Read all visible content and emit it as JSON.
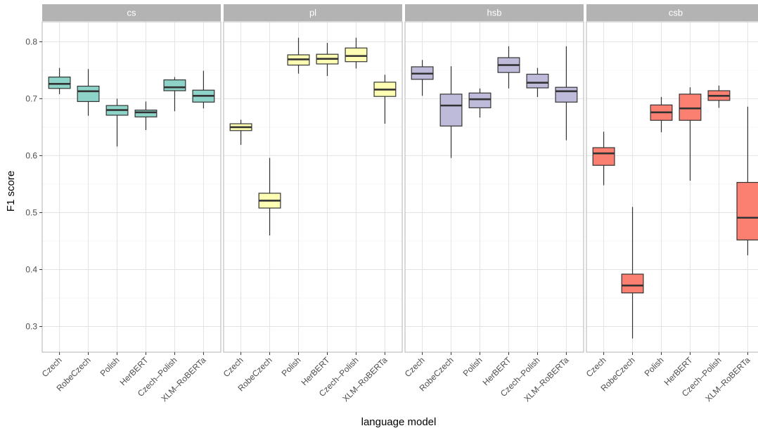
{
  "chart_data": {
    "type": "boxplot",
    "xlabel": "language model",
    "ylabel": "F1 score",
    "ylim": [
      0.255,
      0.835
    ],
    "yticks": [
      0.3,
      0.4,
      0.5,
      0.6,
      0.7,
      0.8
    ],
    "ytick_labels": [
      "0.3",
      "0.4",
      "0.5",
      "0.6",
      "0.7",
      "0.8"
    ],
    "grid": true,
    "legend": "none",
    "categories": [
      "Czech",
      "RobeCzech",
      "Polish",
      "HerBERT",
      "Czech–Polish",
      "XLM–RoBERTa"
    ],
    "panels": [
      {
        "name": "cs",
        "color": "#8DD3C7",
        "boxes": [
          {
            "min": 0.708,
            "q1": 0.718,
            "median": 0.726,
            "q3": 0.738,
            "max": 0.754
          },
          {
            "min": 0.67,
            "q1": 0.695,
            "median": 0.713,
            "q3": 0.722,
            "max": 0.752
          },
          {
            "min": 0.616,
            "q1": 0.671,
            "median": 0.68,
            "q3": 0.688,
            "max": 0.7
          },
          {
            "min": 0.645,
            "q1": 0.668,
            "median": 0.676,
            "q3": 0.68,
            "max": 0.695
          },
          {
            "min": 0.678,
            "q1": 0.714,
            "median": 0.72,
            "q3": 0.733,
            "max": 0.738
          },
          {
            "min": 0.683,
            "q1": 0.694,
            "median": 0.705,
            "q3": 0.715,
            "max": 0.749
          }
        ]
      },
      {
        "name": "pl",
        "color": "#FFFFB3",
        "boxes": [
          {
            "min": 0.619,
            "q1": 0.644,
            "median": 0.65,
            "q3": 0.656,
            "max": 0.663
          },
          {
            "min": 0.46,
            "q1": 0.508,
            "median": 0.521,
            "q3": 0.534,
            "max": 0.596
          },
          {
            "min": 0.744,
            "q1": 0.759,
            "median": 0.769,
            "q3": 0.777,
            "max": 0.807
          },
          {
            "min": 0.74,
            "q1": 0.761,
            "median": 0.77,
            "q3": 0.778,
            "max": 0.798
          },
          {
            "min": 0.753,
            "q1": 0.765,
            "median": 0.775,
            "q3": 0.789,
            "max": 0.807
          },
          {
            "min": 0.656,
            "q1": 0.704,
            "median": 0.716,
            "q3": 0.729,
            "max": 0.742
          }
        ]
      },
      {
        "name": "hsb",
        "color": "#BEBADA",
        "boxes": [
          {
            "min": 0.705,
            "q1": 0.734,
            "median": 0.744,
            "q3": 0.756,
            "max": 0.768
          },
          {
            "min": 0.596,
            "q1": 0.652,
            "median": 0.688,
            "q3": 0.708,
            "max": 0.757
          },
          {
            "min": 0.667,
            "q1": 0.684,
            "median": 0.699,
            "q3": 0.71,
            "max": 0.718
          },
          {
            "min": 0.718,
            "q1": 0.746,
            "median": 0.759,
            "q3": 0.772,
            "max": 0.792
          },
          {
            "min": 0.703,
            "q1": 0.719,
            "median": 0.728,
            "q3": 0.743,
            "max": 0.754
          },
          {
            "min": 0.627,
            "q1": 0.694,
            "median": 0.713,
            "q3": 0.72,
            "max": 0.792
          }
        ]
      },
      {
        "name": "csb",
        "color": "#FB8072",
        "boxes": [
          {
            "min": 0.548,
            "q1": 0.583,
            "median": 0.604,
            "q3": 0.614,
            "max": 0.642
          },
          {
            "min": 0.279,
            "q1": 0.359,
            "median": 0.372,
            "q3": 0.392,
            "max": 0.51
          },
          {
            "min": 0.641,
            "q1": 0.662,
            "median": 0.676,
            "q3": 0.689,
            "max": 0.703
          },
          {
            "min": 0.556,
            "q1": 0.662,
            "median": 0.683,
            "q3": 0.708,
            "max": 0.72
          },
          {
            "min": 0.684,
            "q1": 0.697,
            "median": 0.705,
            "q3": 0.714,
            "max": 0.723
          },
          {
            "min": 0.425,
            "q1": 0.452,
            "median": 0.491,
            "q3": 0.553,
            "max": 0.686
          }
        ]
      }
    ]
  }
}
